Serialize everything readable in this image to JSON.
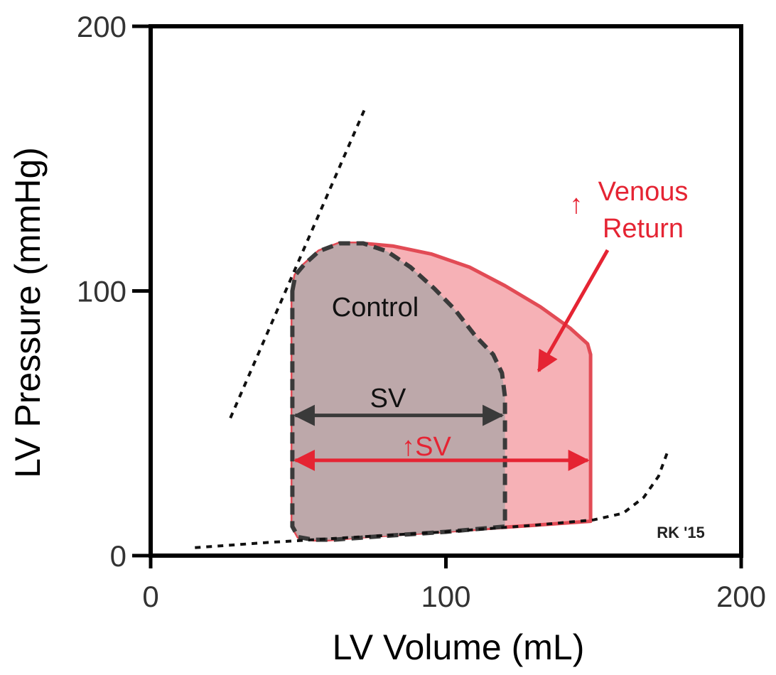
{
  "chart_data": {
    "type": "line",
    "title": "",
    "xlabel": "LV Volume (mL)",
    "ylabel": "LV Pressure (mmHg)",
    "xlim": [
      0,
      200
    ],
    "ylim": [
      0,
      200
    ],
    "x_ticks": [
      "0",
      "100",
      "200"
    ],
    "y_ticks": [
      "0",
      "100",
      "200"
    ],
    "grid": false,
    "series": [
      {
        "kind": "loop",
        "style": "dashed-dark",
        "fill": "#b9a8aa",
        "points": [
          [
            48,
            100
          ],
          [
            49,
            106
          ],
          [
            52,
            110
          ],
          [
            57,
            115
          ],
          [
            64,
            118
          ],
          [
            72,
            118
          ],
          [
            80,
            115
          ],
          [
            88,
            109
          ],
          [
            96,
            101
          ],
          [
            103,
            93
          ],
          [
            110,
            83
          ],
          [
            116,
            76
          ],
          [
            119,
            69
          ],
          [
            120,
            60
          ],
          [
            120,
            45
          ],
          [
            120,
            30
          ],
          [
            120,
            11
          ],
          [
            100,
            9
          ],
          [
            80,
            7.5
          ],
          [
            62,
            6
          ],
          [
            55,
            6
          ],
          [
            50,
            7
          ],
          [
            48,
            11
          ],
          [
            48,
            20
          ],
          [
            48,
            40
          ],
          [
            48,
            60
          ],
          [
            48,
            80
          ],
          [
            48,
            100
          ]
        ]
      },
      {
        "kind": "loop",
        "style": "solid-red",
        "fill": "#f5a9ae",
        "points": [
          [
            48,
            100
          ],
          [
            49,
            106
          ],
          [
            52,
            110
          ],
          [
            57,
            115
          ],
          [
            64,
            118
          ],
          [
            72,
            118
          ],
          [
            82,
            117
          ],
          [
            95,
            114
          ],
          [
            108,
            109
          ],
          [
            120,
            102
          ],
          [
            132,
            94
          ],
          [
            142,
            86
          ],
          [
            148,
            80
          ],
          [
            149,
            76
          ],
          [
            149,
            60
          ],
          [
            149,
            40
          ],
          [
            149,
            20
          ],
          [
            149,
            13
          ],
          [
            130,
            11.5
          ],
          [
            110,
            10
          ],
          [
            90,
            8.5
          ],
          [
            70,
            7
          ],
          [
            60,
            6
          ],
          [
            55,
            6
          ],
          [
            50,
            7
          ],
          [
            48,
            11
          ],
          [
            48,
            20
          ],
          [
            48,
            40
          ],
          [
            48,
            60
          ],
          [
            48,
            80
          ],
          [
            48,
            100
          ]
        ]
      },
      {
        "kind": "espvr",
        "style": "dotted",
        "points": [
          [
            27,
            52
          ],
          [
            73,
            170
          ]
        ]
      },
      {
        "kind": "edpvr",
        "style": "dotted",
        "points": [
          [
            15,
            3
          ],
          [
            40,
            5
          ],
          [
            70,
            7
          ],
          [
            100,
            9
          ],
          [
            130,
            11.5
          ],
          [
            150,
            13.5
          ],
          [
            160,
            16
          ],
          [
            167,
            22
          ],
          [
            172,
            30
          ],
          [
            175,
            39
          ]
        ]
      }
    ],
    "annotations": {
      "control_label": "Control",
      "sv_label": "SV",
      "sv_up_label": "↑SV",
      "venous_up_arrow": "↑",
      "venous_line1": "Venous",
      "venous_line2": "Return",
      "credit": "RK '15",
      "sv_arrow": [
        48,
        120,
        53
      ],
      "sv_up_arrow": [
        48,
        149,
        36
      ]
    },
    "colors": {
      "red": "#e52433",
      "dark": "#3a3a3a",
      "control_fill": "#b9a8aa",
      "red_fill": "#f5a9ae"
    }
  }
}
